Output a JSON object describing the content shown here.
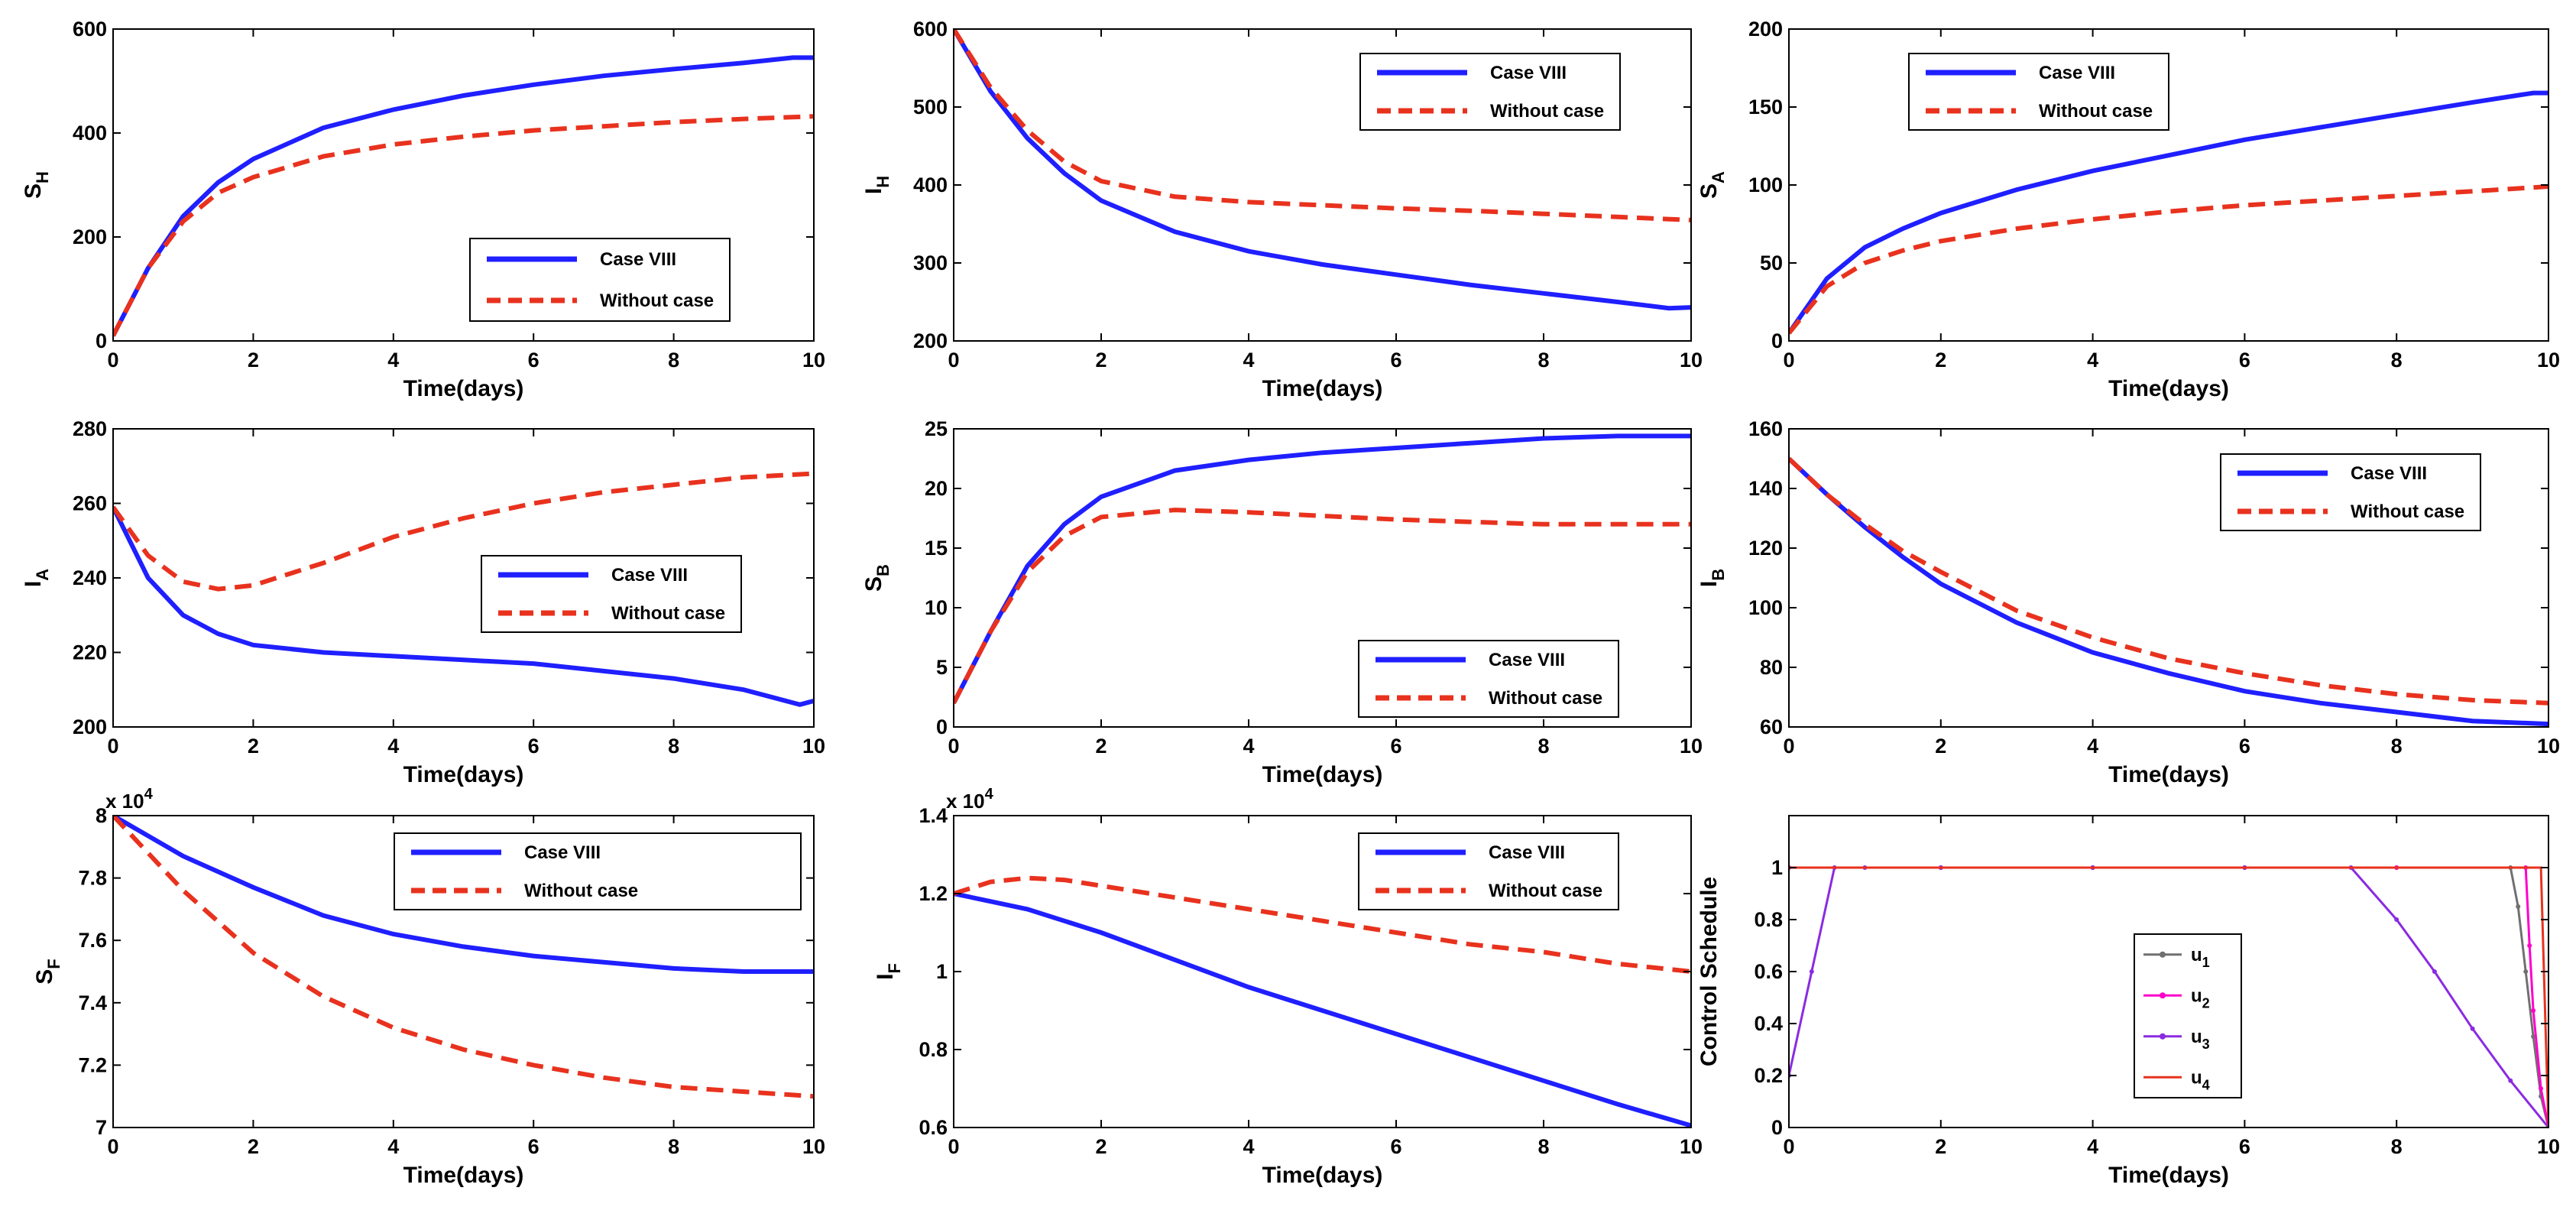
{
  "chart_data": [
    {
      "type": "line",
      "ylabel": "S",
      "ylabel_sub": "H",
      "xlabel": "Time(days)",
      "xlim": [
        0,
        10
      ],
      "ylim": [
        0,
        600
      ],
      "xticks": [
        "0",
        "2",
        "4",
        "6",
        "8",
        "10"
      ],
      "yticks": [
        "0",
        "200",
        "400",
        "600"
      ],
      "legend_position": "bottom-right",
      "series": [
        {
          "name": "Case VIII",
          "color": "#1f1fff",
          "style": "solid",
          "x": [
            0,
            0.5,
            1,
            1.5,
            2,
            3,
            4,
            5,
            6,
            7,
            8,
            9,
            9.7,
            10
          ],
          "y": [
            10,
            140,
            240,
            305,
            350,
            410,
            445,
            472,
            493,
            510,
            523,
            535,
            545,
            545
          ]
        },
        {
          "name": "Without case",
          "color": "#e8321e",
          "style": "dashed",
          "x": [
            0,
            0.5,
            1,
            1.5,
            2,
            3,
            4,
            5,
            6,
            7,
            8,
            9,
            10
          ],
          "y": [
            10,
            140,
            230,
            285,
            315,
            355,
            378,
            393,
            405,
            413,
            421,
            427,
            432
          ]
        }
      ]
    },
    {
      "type": "line",
      "ylabel": "I",
      "ylabel_sub": "H",
      "xlabel": "Time(days)",
      "xlim": [
        0,
        10
      ],
      "ylim": [
        200,
        600
      ],
      "xticks": [
        "0",
        "2",
        "4",
        "6",
        "8",
        "10"
      ],
      "yticks": [
        "200",
        "300",
        "400",
        "500",
        "600"
      ],
      "legend_position": "top-right",
      "series": [
        {
          "name": "Case VIII",
          "color": "#1f1fff",
          "style": "solid",
          "x": [
            0,
            0.5,
            1,
            1.5,
            2,
            3,
            4,
            5,
            6,
            7,
            8,
            9,
            9.7,
            10
          ],
          "y": [
            600,
            520,
            460,
            415,
            380,
            340,
            315,
            298,
            285,
            272,
            261,
            250,
            242,
            243
          ]
        },
        {
          "name": "Without case",
          "color": "#e8321e",
          "style": "dashed",
          "x": [
            0,
            0.5,
            1,
            1.5,
            2,
            3,
            4,
            5,
            6,
            7,
            8,
            9,
            10
          ],
          "y": [
            600,
            525,
            470,
            430,
            405,
            385,
            378,
            374,
            370,
            367,
            363,
            359,
            355
          ]
        }
      ]
    },
    {
      "type": "line",
      "ylabel": "S",
      "ylabel_sub": "A",
      "xlabel": "Time(days)",
      "xlim": [
        0,
        10
      ],
      "ylim": [
        0,
        200
      ],
      "xticks": [
        "0",
        "2",
        "4",
        "6",
        "8",
        "10"
      ],
      "yticks": [
        "0",
        "50",
        "100",
        "150",
        "200"
      ],
      "legend_position": "top-left",
      "series": [
        {
          "name": "Case VIII",
          "color": "#1f1fff",
          "style": "solid",
          "x": [
            0,
            0.5,
            1,
            1.5,
            2,
            3,
            4,
            5,
            6,
            7,
            8,
            9,
            9.8,
            10
          ],
          "y": [
            5,
            40,
            60,
            72,
            82,
            97,
            109,
            119,
            129,
            137,
            145,
            153,
            159,
            159
          ]
        },
        {
          "name": "Without case",
          "color": "#e8321e",
          "style": "dashed",
          "x": [
            0,
            0.5,
            1,
            1.5,
            2,
            3,
            4,
            5,
            6,
            7,
            8,
            9,
            10
          ],
          "y": [
            5,
            35,
            50,
            58,
            64,
            72,
            78,
            83,
            87,
            90,
            93,
            96,
            99
          ]
        }
      ]
    },
    {
      "type": "line",
      "ylabel": "I",
      "ylabel_sub": "A",
      "xlabel": "Time(days)",
      "xlim": [
        0,
        10
      ],
      "ylim": [
        200,
        280
      ],
      "xticks": [
        "0",
        "2",
        "4",
        "6",
        "8",
        "10"
      ],
      "yticks": [
        "200",
        "220",
        "240",
        "260",
        "280"
      ],
      "legend_position": "center-right",
      "series": [
        {
          "name": "Case VIII",
          "color": "#1f1fff",
          "style": "solid",
          "x": [
            0,
            0.5,
            1,
            1.5,
            2,
            3,
            4,
            5,
            6,
            7,
            8,
            9,
            9.8,
            10
          ],
          "y": [
            259,
            240,
            230,
            225,
            222,
            220,
            219,
            218,
            217,
            215,
            213,
            210,
            206,
            207
          ]
        },
        {
          "name": "Without case",
          "color": "#e8321e",
          "style": "dashed",
          "x": [
            0,
            0.5,
            1,
            1.5,
            2,
            3,
            4,
            5,
            6,
            7,
            8,
            9,
            10
          ],
          "y": [
            259,
            246,
            239,
            237,
            238,
            244,
            251,
            256,
            260,
            263,
            265,
            267,
            268
          ]
        }
      ]
    },
    {
      "type": "line",
      "ylabel": "S",
      "ylabel_sub": "B",
      "xlabel": "Time(days)",
      "xlim": [
        0,
        10
      ],
      "ylim": [
        0,
        25
      ],
      "xticks": [
        "0",
        "2",
        "4",
        "6",
        "8",
        "10"
      ],
      "yticks": [
        "0",
        "5",
        "10",
        "15",
        "20",
        "25"
      ],
      "legend_position": "bottom-right",
      "series": [
        {
          "name": "Case VIII",
          "color": "#1f1fff",
          "style": "solid",
          "x": [
            0,
            0.5,
            1,
            1.5,
            2,
            3,
            4,
            5,
            6,
            7,
            8,
            9,
            10
          ],
          "y": [
            2,
            8,
            13.5,
            17,
            19.3,
            21.5,
            22.4,
            23,
            23.4,
            23.8,
            24.2,
            24.4,
            24.4
          ]
        },
        {
          "name": "Without case",
          "color": "#e8321e",
          "style": "dashed",
          "x": [
            0,
            0.5,
            1,
            1.5,
            2,
            3,
            4,
            5,
            6,
            7,
            8,
            9,
            10
          ],
          "y": [
            2,
            8,
            13,
            16,
            17.6,
            18.2,
            18,
            17.7,
            17.4,
            17.2,
            17,
            17,
            17
          ]
        }
      ]
    },
    {
      "type": "line",
      "ylabel": "I",
      "ylabel_sub": "B",
      "xlabel": "Time(days)",
      "xlim": [
        0,
        10
      ],
      "ylim": [
        60,
        160
      ],
      "xticks": [
        "0",
        "2",
        "4",
        "6",
        "8",
        "10"
      ],
      "yticks": [
        "60",
        "80",
        "100",
        "120",
        "140",
        "160"
      ],
      "legend_position": "top-right",
      "series": [
        {
          "name": "Case VIII",
          "color": "#1f1fff",
          "style": "solid",
          "x": [
            0,
            0.5,
            1,
            1.5,
            2,
            3,
            4,
            5,
            6,
            7,
            8,
            9,
            10
          ],
          "y": [
            150,
            138,
            127,
            117,
            108,
            95,
            85,
            78,
            72,
            68,
            65,
            62,
            61
          ]
        },
        {
          "name": "Without case",
          "color": "#e8321e",
          "style": "dashed",
          "x": [
            0,
            0.5,
            1,
            1.5,
            2,
            3,
            4,
            5,
            6,
            7,
            8,
            9,
            10
          ],
          "y": [
            150,
            138,
            128,
            119,
            112,
            99,
            90,
            83,
            78,
            74,
            71,
            69,
            68
          ]
        }
      ]
    },
    {
      "type": "line",
      "ylabel": "S",
      "ylabel_sub": "F",
      "xlabel": "Time(days)",
      "multiplier": "x 10",
      "multiplier_exp": "4",
      "xlim": [
        0,
        10
      ],
      "ylim": [
        7,
        8
      ],
      "xticks": [
        "0",
        "2",
        "4",
        "6",
        "8",
        "10"
      ],
      "yticks": [
        "7",
        "7.2",
        "7.4",
        "7.6",
        "7.8",
        "8"
      ],
      "legend_position": "top-right",
      "series": [
        {
          "name": "Case VIII",
          "color": "#1f1fff",
          "style": "solid",
          "x": [
            0,
            1,
            2,
            3,
            4,
            5,
            6,
            7,
            8,
            9,
            10
          ],
          "y": [
            8,
            7.87,
            7.77,
            7.68,
            7.62,
            7.58,
            7.55,
            7.53,
            7.51,
            7.5,
            7.5
          ]
        },
        {
          "name": "Without case",
          "color": "#e8321e",
          "style": "dashed",
          "x": [
            0,
            1,
            2,
            3,
            4,
            5,
            6,
            7,
            8,
            9,
            10
          ],
          "y": [
            8,
            7.76,
            7.56,
            7.42,
            7.32,
            7.25,
            7.2,
            7.16,
            7.13,
            7.115,
            7.1
          ]
        }
      ]
    },
    {
      "type": "line",
      "ylabel": "I",
      "ylabel_sub": "F",
      "xlabel": "Time(days)",
      "multiplier": "x 10",
      "multiplier_exp": "4",
      "xlim": [
        0,
        10
      ],
      "ylim": [
        0.6,
        1.4
      ],
      "xticks": [
        "0",
        "2",
        "4",
        "6",
        "8",
        "10"
      ],
      "yticks": [
        "0.6",
        "0.8",
        "1",
        "1.2",
        "1.4"
      ],
      "legend_position": "top-right",
      "series": [
        {
          "name": "Case VIII",
          "color": "#1f1fff",
          "style": "solid",
          "x": [
            0,
            1,
            2,
            3,
            4,
            5,
            6,
            7,
            8,
            9,
            10
          ],
          "y": [
            1.2,
            1.16,
            1.1,
            1.03,
            0.96,
            0.9,
            0.84,
            0.78,
            0.72,
            0.66,
            0.605
          ]
        },
        {
          "name": "Without case",
          "color": "#e8321e",
          "style": "dashed",
          "x": [
            0,
            0.5,
            1,
            1.5,
            2,
            3,
            4,
            5,
            6,
            7,
            8,
            9,
            10
          ],
          "y": [
            1.2,
            1.23,
            1.24,
            1.235,
            1.22,
            1.19,
            1.16,
            1.13,
            1.1,
            1.07,
            1.05,
            1.02,
            1.0
          ]
        }
      ]
    },
    {
      "type": "line",
      "ylabel": "Control Schedule",
      "xlabel": "Time(days)",
      "xlim": [
        0,
        10
      ],
      "ylim": [
        0,
        1.2
      ],
      "xticks": [
        "0",
        "2",
        "4",
        "6",
        "8",
        "10"
      ],
      "yticks": [
        "0",
        "0.2",
        "0.4",
        "0.6",
        "0.8",
        "1"
      ],
      "legend_position": "bottom-center",
      "series": [
        {
          "name": "u",
          "sub": "1",
          "color": "#707070",
          "style": "solid-marker",
          "x": [
            0,
            2,
            4,
            6,
            8,
            9.5,
            9.6,
            9.7,
            9.8,
            9.9,
            10
          ],
          "y": [
            1,
            1,
            1,
            1,
            1,
            1,
            0.85,
            0.6,
            0.35,
            0.12,
            0
          ]
        },
        {
          "name": "u",
          "sub": "2",
          "color": "#ff00cc",
          "style": "solid-marker",
          "x": [
            0,
            2,
            4,
            6,
            8,
            9.7,
            9.75,
            9.8,
            9.9,
            10
          ],
          "y": [
            1,
            1,
            1,
            1,
            1,
            1,
            0.7,
            0.45,
            0.15,
            0
          ]
        },
        {
          "name": "u",
          "sub": "3",
          "color": "#8a2be2",
          "style": "solid-marker",
          "x": [
            0,
            0.3,
            0.6,
            1,
            2,
            4,
            6,
            7.4,
            8,
            8.5,
            9,
            9.5,
            10
          ],
          "y": [
            0.2,
            0.6,
            1,
            1,
            1,
            1,
            1,
            1,
            0.8,
            0.6,
            0.38,
            0.18,
            0
          ]
        },
        {
          "name": "u",
          "sub": "4",
          "color": "#e8321e",
          "style": "solid",
          "x": [
            0,
            2,
            4,
            6,
            8,
            9.9,
            9.95,
            10
          ],
          "y": [
            1,
            1,
            1,
            1,
            1,
            1,
            0.5,
            0
          ]
        }
      ]
    }
  ]
}
